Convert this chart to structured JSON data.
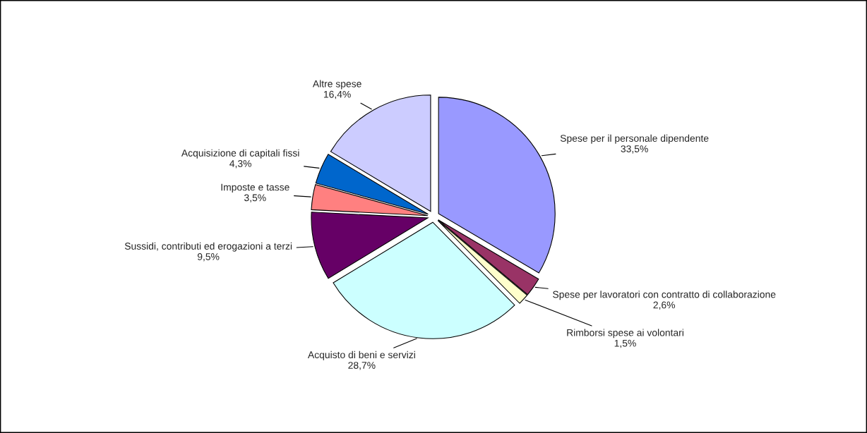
{
  "chart_data": {
    "type": "pie",
    "categories": [
      "Spese per il personale dipendente",
      "Spese per lavoratori con contratto di collaborazione",
      "Rimborsi spese ai volontari",
      "Acquisto di beni e servizi",
      "Sussidi, contributi ed erogazioni a terzi",
      "Imposte e tasse",
      "Acquisizione di capitali fissi",
      "Altre spese"
    ],
    "values": [
      33.5,
      2.6,
      1.5,
      28.7,
      9.5,
      3.5,
      4.3,
      16.4
    ],
    "value_labels": [
      "33,5%",
      "2,6%",
      "1,5%",
      "28,7%",
      "9,5%",
      "3,5%",
      "4,3%",
      "16,4%"
    ],
    "colors": [
      "#9999ff",
      "#993366",
      "#ffffcc",
      "#ccffff",
      "#660066",
      "#ff8080",
      "#0066cc",
      "#ccccff"
    ],
    "legend": false
  }
}
